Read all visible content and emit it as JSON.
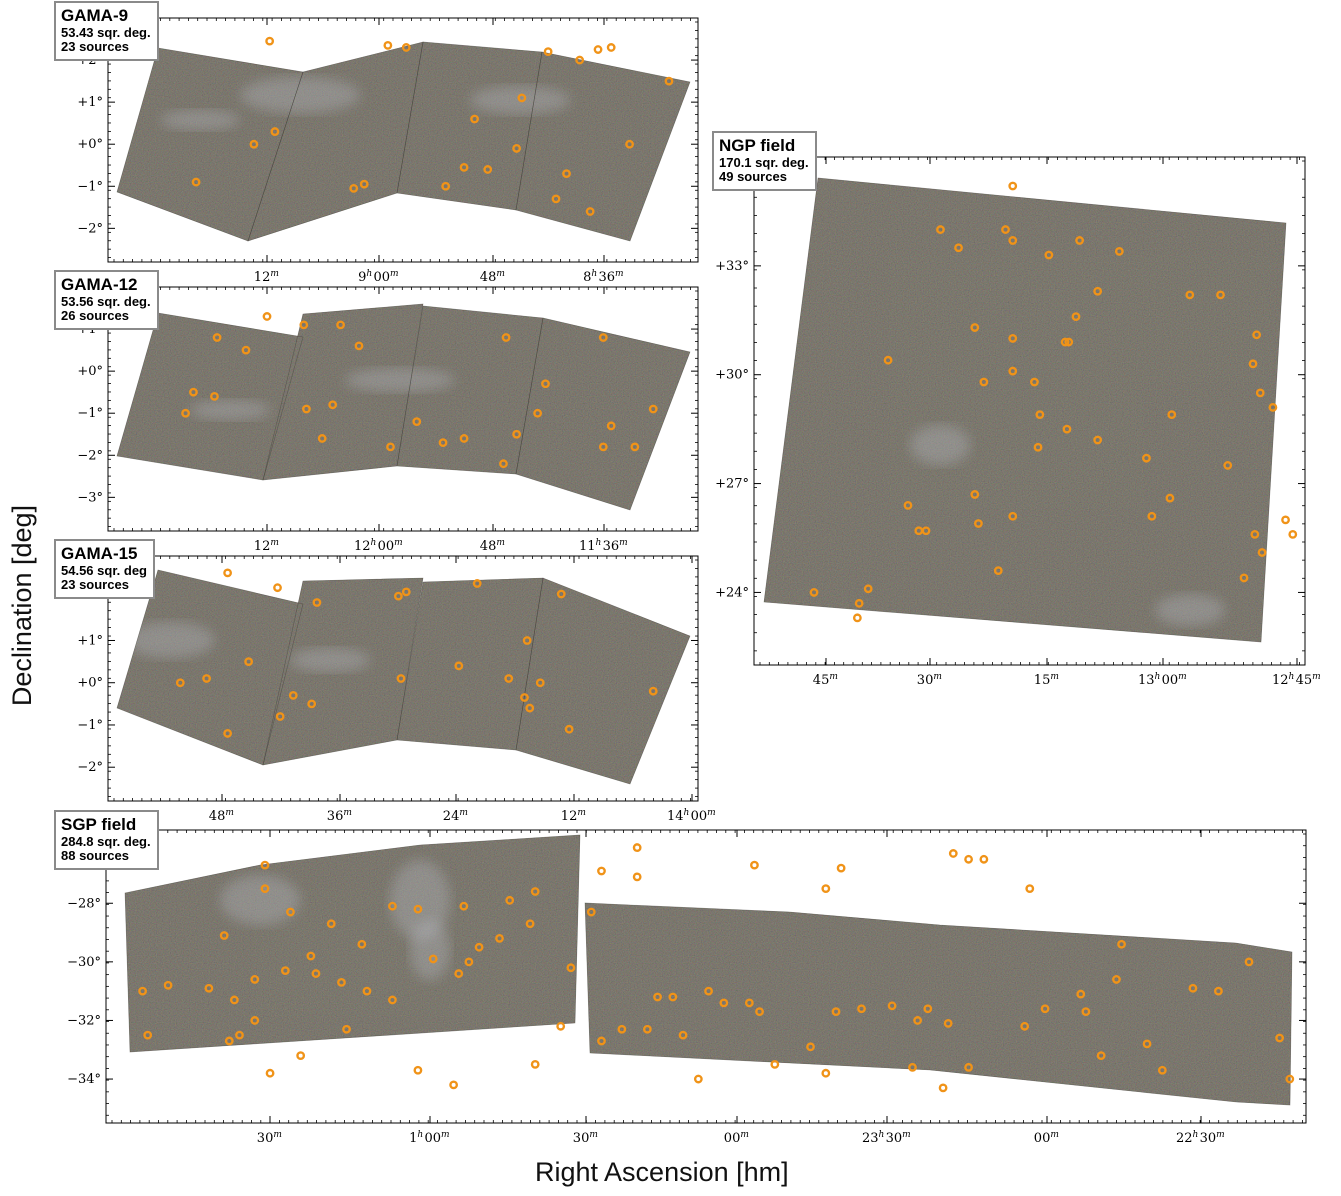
{
  "colors": {
    "field_fill": "#5d5a4b",
    "field_noise": [
      "#7a5e49",
      "#4f5c4a",
      "#5c5766",
      "#6e6a5a",
      "#3f4138"
    ],
    "cirrus": "#b9bcc4",
    "source_marker": "#f09318",
    "axis": "#000000"
  },
  "labels": {
    "xlabel": "Right Ascension [hm]",
    "ylabel": "Declination [deg]"
  },
  "chart_data": [
    {
      "type": "scatter",
      "title": "GAMA-9",
      "area": "53.43 sqr. deg.",
      "count": "23 sources",
      "x_ticks": [
        "12m",
        "9h00m",
        "48m",
        "8h36m"
      ],
      "y_ticks": [
        "+2°",
        "+1°",
        "+0°",
        "−1°",
        "−2°"
      ],
      "points": [
        [
          -4.0,
          2.45
        ],
        [
          1.2,
          2.3
        ],
        [
          6.6,
          2.2
        ],
        [
          8.5,
          2.25
        ],
        [
          9.0,
          2.3
        ],
        [
          7.8,
          2.0
        ],
        [
          11.2,
          1.5
        ],
        [
          -6.8,
          -0.9
        ],
        [
          -4.6,
          0.0
        ],
        [
          -3.8,
          0.3
        ],
        [
          -0.8,
          -1.05
        ],
        [
          -0.4,
          -0.95
        ],
        [
          3.8,
          0.6
        ],
        [
          5.6,
          1.1
        ],
        [
          5.4,
          -0.1
        ],
        [
          9.7,
          0.0
        ],
        [
          7.3,
          -0.7
        ],
        [
          2.7,
          -1.0
        ],
        [
          4.3,
          -0.6
        ],
        [
          6.9,
          -1.3
        ],
        [
          0.5,
          2.35
        ],
        [
          3.4,
          -0.55
        ],
        [
          8.2,
          -1.6
        ]
      ]
    },
    {
      "type": "scatter",
      "title": "GAMA-12",
      "area": "53.56 sqr. deg.",
      "count": "26 sources",
      "x_ticks": [
        "12m",
        "12h00m",
        "48m",
        "11h36m"
      ],
      "y_ticks": [
        "+1°",
        "+0°",
        "−1°",
        "−2°",
        "−3°"
      ],
      "points": [
        [
          -6.0,
          0.8
        ],
        [
          -4.1,
          1.3
        ],
        [
          -2.7,
          1.1
        ],
        [
          -1.3,
          1.1
        ],
        [
          -0.6,
          0.6
        ],
        [
          -4.9,
          0.5
        ],
        [
          -6.9,
          -0.5
        ],
        [
          -7.2,
          -1.0
        ],
        [
          -6.1,
          -0.6
        ],
        [
          -2.6,
          -0.9
        ],
        [
          -2.0,
          -1.6
        ],
        [
          -1.6,
          -0.8
        ],
        [
          0.6,
          -1.8
        ],
        [
          1.6,
          -1.2
        ],
        [
          2.6,
          -1.7
        ],
        [
          3.4,
          -1.6
        ],
        [
          5.0,
          0.8
        ],
        [
          5.4,
          -1.5
        ],
        [
          6.5,
          -0.3
        ],
        [
          6.2,
          -1.0
        ],
        [
          4.9,
          -2.2
        ],
        [
          8.7,
          0.8
        ],
        [
          8.7,
          -1.8
        ],
        [
          9.0,
          -1.3
        ],
        [
          9.9,
          -1.8
        ],
        [
          10.6,
          -0.9
        ]
      ]
    },
    {
      "type": "scatter",
      "title": "GAMA-15",
      "area": "54.56 sqr. deg",
      "count": "23 sources",
      "x_ticks": [
        "48m",
        "36m",
        "24m",
        "12m",
        "14h00m"
      ],
      "y_ticks": [
        "+1°",
        "+0°",
        "−1°",
        "−2°"
      ],
      "points": [
        [
          -5.6,
          2.6
        ],
        [
          -3.7,
          2.25
        ],
        [
          -2.2,
          1.9
        ],
        [
          0.9,
          2.05
        ],
        [
          1.2,
          2.15
        ],
        [
          3.9,
          2.35
        ],
        [
          7.1,
          2.1
        ],
        [
          -7.4,
          0.0
        ],
        [
          -6.4,
          0.1
        ],
        [
          -4.8,
          0.5
        ],
        [
          -3.1,
          -0.3
        ],
        [
          -2.4,
          -0.5
        ],
        [
          -3.6,
          -0.8
        ],
        [
          -5.6,
          -1.2
        ],
        [
          1.0,
          0.1
        ],
        [
          3.2,
          0.4
        ],
        [
          5.1,
          0.1
        ],
        [
          5.8,
          1.0
        ],
        [
          5.9,
          -0.6
        ],
        [
          6.3,
          0.0
        ],
        [
          7.4,
          -1.1
        ],
        [
          10.6,
          -0.2
        ],
        [
          5.7,
          -0.35
        ]
      ]
    },
    {
      "type": "scatter",
      "title": "NGP field",
      "area": "170.1 sqr. deg.",
      "count": "49 sources",
      "x_ticks": [
        "45m",
        "30m",
        "15m",
        "13h00m",
        "12h45m"
      ],
      "y_ticks": [
        "+33°",
        "+30°",
        "+27°",
        "+24°"
      ],
      "points": [
        [
          -0.9,
          35.2
        ],
        [
          -4.9,
          34.0
        ],
        [
          -3.9,
          33.5
        ],
        [
          -1.3,
          34.0
        ],
        [
          -0.9,
          33.7
        ],
        [
          1.1,
          33.3
        ],
        [
          2.8,
          33.7
        ],
        [
          5.0,
          33.4
        ],
        [
          10.6,
          32.2
        ],
        [
          8.9,
          32.2
        ],
        [
          3.8,
          32.3
        ],
        [
          2.6,
          31.6
        ],
        [
          -3.0,
          31.3
        ],
        [
          2.0,
          30.9
        ],
        [
          2.2,
          30.9
        ],
        [
          -0.9,
          31.0
        ],
        [
          -0.9,
          30.1
        ],
        [
          0.3,
          29.8
        ],
        [
          -2.5,
          29.8
        ],
        [
          -7.8,
          30.4
        ],
        [
          12.4,
          30.3
        ],
        [
          12.6,
          31.1
        ],
        [
          12.8,
          29.5
        ],
        [
          13.5,
          29.1
        ],
        [
          0.6,
          28.9
        ],
        [
          2.1,
          28.5
        ],
        [
          3.8,
          28.2
        ],
        [
          0.5,
          28.0
        ],
        [
          6.5,
          27.7
        ],
        [
          7.9,
          28.9
        ],
        [
          11.0,
          27.5
        ],
        [
          7.8,
          26.6
        ],
        [
          -3.0,
          26.7
        ],
        [
          -0.9,
          26.1
        ],
        [
          -6.7,
          26.4
        ],
        [
          -6.1,
          25.7
        ],
        [
          -5.7,
          25.7
        ],
        [
          -2.8,
          25.9
        ],
        [
          12.5,
          25.6
        ],
        [
          12.9,
          25.1
        ],
        [
          11.9,
          24.4
        ],
        [
          6.8,
          26.1
        ],
        [
          14.2,
          26.0
        ],
        [
          14.6,
          25.6
        ],
        [
          -1.7,
          24.6
        ],
        [
          -8.9,
          24.1
        ],
        [
          -9.4,
          23.7
        ],
        [
          -11.9,
          24.0
        ],
        [
          -9.5,
          23.3
        ]
      ]
    },
    {
      "type": "scatter",
      "title": "SGP field",
      "area": "284.8 sqr. deg.",
      "count": "88 sources",
      "x_ticks": [
        "30m",
        "1h00m",
        "30m",
        "00m",
        "23h30m",
        "00m",
        "22h30m"
      ],
      "y_ticks": [
        "−28°",
        "−30°",
        "−32°",
        "−34°"
      ],
      "points": [
        [
          70,
          -27.5
        ],
        [
          61,
          -26.5
        ],
        [
          55,
          -26.3
        ],
        [
          33,
          -26.8
        ],
        [
          30,
          -27.5
        ],
        [
          16,
          -26.7
        ],
        [
          -7,
          -26.1
        ],
        [
          -27,
          -27.6
        ],
        [
          -41,
          -28.1
        ],
        [
          -7,
          -27.1
        ],
        [
          -14,
          -26.9
        ],
        [
          -16,
          -28.3
        ],
        [
          -55,
          -28.1
        ],
        [
          58,
          -26.5
        ],
        [
          -32,
          -27.9
        ],
        [
          -50,
          -28.2
        ],
        [
          -67,
          -28.7
        ],
        [
          -75,
          -28.3
        ],
        [
          -80,
          -27.5
        ],
        [
          -80,
          -26.7
        ],
        [
          -71,
          -29.8
        ],
        [
          -28,
          -28.7
        ],
        [
          -61,
          -29.4
        ],
        [
          -88,
          -29.1
        ],
        [
          -34,
          -29.2
        ],
        [
          -38,
          -29.5
        ],
        [
          -40,
          -30.0
        ],
        [
          -42,
          -30.4
        ],
        [
          -47,
          -29.9
        ],
        [
          -55,
          -31.3
        ],
        [
          -60,
          -31.0
        ],
        [
          -65,
          -30.7
        ],
        [
          -70,
          -30.4
        ],
        [
          -76,
          -30.3
        ],
        [
          -82,
          -30.6
        ],
        [
          -86,
          -31.3
        ],
        [
          -91,
          -30.9
        ],
        [
          -99,
          -30.8
        ],
        [
          -103,
          -32.5
        ],
        [
          -104,
          -31.0
        ],
        [
          -87,
          -32.7
        ],
        [
          -85,
          -32.5
        ],
        [
          -82,
          -32.0
        ],
        [
          -79,
          -33.8
        ],
        [
          -73,
          -33.2
        ],
        [
          -64,
          -32.3
        ],
        [
          -20,
          -30.2
        ],
        [
          -22,
          -32.2
        ],
        [
          -14,
          -32.7
        ],
        [
          -10,
          -32.3
        ],
        [
          -5,
          -32.3
        ],
        [
          2,
          -32.5
        ],
        [
          0,
          -31.2
        ],
        [
          -3,
          -31.2
        ],
        [
          7,
          -31.0
        ],
        [
          10,
          -31.4
        ],
        [
          15,
          -31.4
        ],
        [
          17,
          -31.7
        ],
        [
          20,
          -33.5
        ],
        [
          27,
          -32.9
        ],
        [
          32,
          -31.7
        ],
        [
          37,
          -31.6
        ],
        [
          43,
          -31.5
        ],
        [
          50,
          -31.6
        ],
        [
          54,
          -32.1
        ],
        [
          47,
          -33.6
        ],
        [
          53,
          -34.3
        ],
        [
          58,
          -33.6
        ],
        [
          69,
          -32.2
        ],
        [
          80,
          -31.1
        ],
        [
          81,
          -31.7
        ],
        [
          93,
          -32.8
        ],
        [
          96,
          -33.7
        ],
        [
          87,
          -30.6
        ],
        [
          84,
          -33.2
        ],
        [
          5,
          -34.0
        ],
        [
          -27,
          -33.5
        ],
        [
          -43,
          -34.2
        ],
        [
          -50,
          -33.7
        ],
        [
          30,
          -33.8
        ],
        [
          48,
          -32.0
        ],
        [
          73,
          -31.6
        ],
        [
          88,
          -29.4
        ],
        [
          102,
          -30.9
        ],
        [
          107,
          -31.0
        ],
        [
          113,
          -30.0
        ],
        [
          119,
          -32.6
        ],
        [
          121,
          -34.0
        ]
      ]
    }
  ]
}
